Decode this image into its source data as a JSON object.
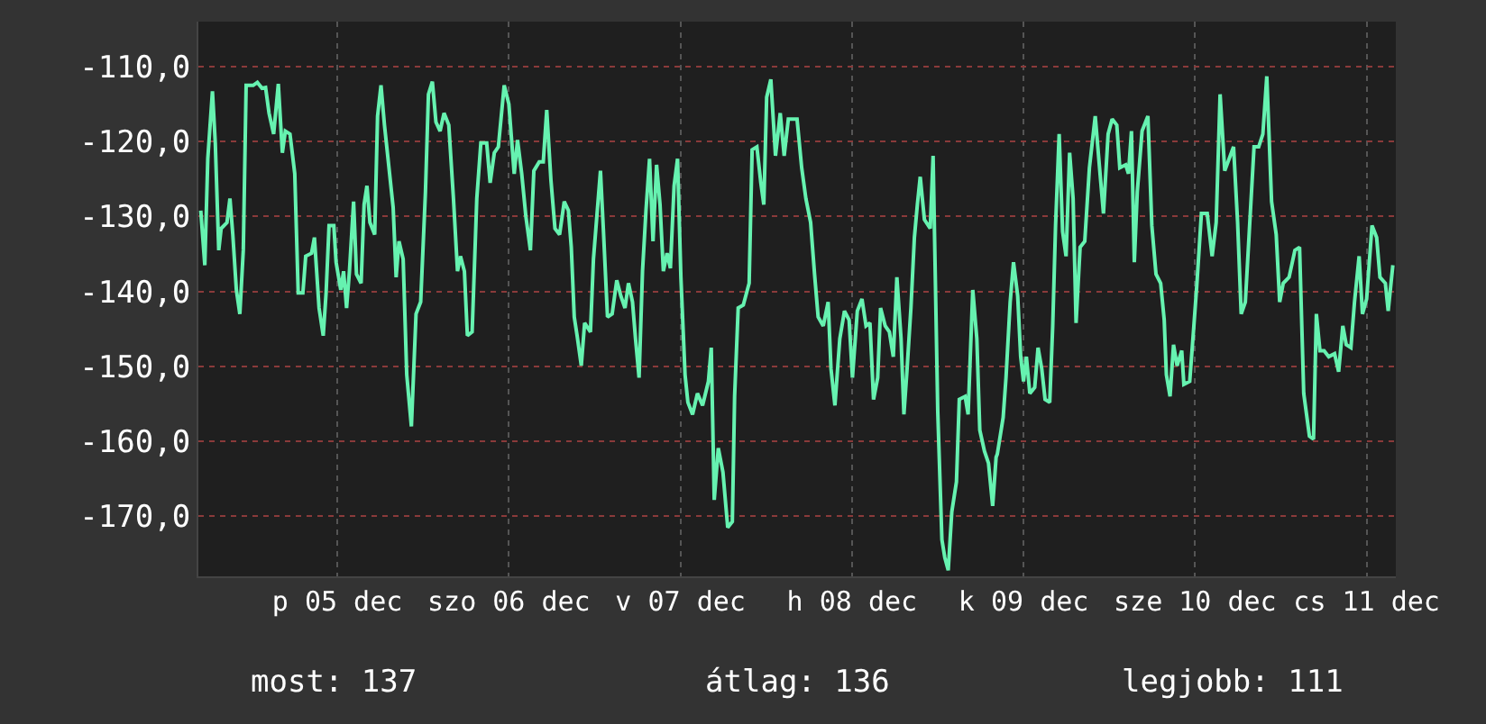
{
  "chart_data": {
    "type": "line",
    "x": [
      "--12-04T16:54",
      "--12-04T17:28",
      "--12-04T17:53",
      "--12-04T18:32",
      "--12-04T18:56",
      "--12-04T19:25",
      "--12-04T19:45",
      "--12-04T20:34",
      "--12-04T20:59",
      "--12-04T21:23",
      "--12-04T21:53",
      "--12-04T22:22",
      "--12-04T22:51",
      "--12-04T23:15",
      "--12-05T00:14",
      "--12-05T00:49",
      "--12-05T01:28",
      "--12-05T01:58",
      "--12-05T02:27",
      "--12-05T03:06",
      "--12-05T03:45",
      "--12-05T04:19",
      "--12-05T04:44",
      "--12-05T05:23",
      "--12-05T06:03",
      "--12-05T06:32",
      "--12-05T07:11",
      "--12-05T07:35",
      "--12-05T08:24",
      "--12-05T08:48",
      "--12-05T09:27",
      "--12-05T10:02",
      "--12-05T10:26",
      "--12-05T10:51",
      "--12-05T11:31",
      "--12-05T11:50",
      "--12-05T12:29",
      "--12-05T12:53",
      "--12-05T13:18",
      "--12-05T13:42",
      "--12-05T14:17",
      "--12-05T14:41",
      "--12-05T15:20",
      "--12-05T15:45",
      "--12-05T16:09",
      "--12-05T16:34",
      "--12-05T17:14",
      "--12-05T17:38",
      "--12-05T18:07",
      "--12-05T18:36",
      "--12-05T19:49",
      "--12-05T20:14",
      "--12-05T20:38",
      "--12-05T21:13",
      "--12-05T21:43",
      "--12-05T22:22",
      "--12-05T23:01",
      "--12-05T23:40",
      "--12-06T00:20",
      "--12-06T00:45",
      "--12-06T01:18",
      "--12-06T01:48",
      "--12-06T02:23",
      "--12-06T02:56",
      "--12-06T03:36",
      "--12-06T04:15",
      "--12-06T04:49",
      "--12-06T05:14",
      "--12-06T05:47",
      "--12-06T06:12",
      "--12-06T06:52",
      "--12-06T07:31",
      "--12-06T08:05",
      "--12-06T08:54",
      "--12-06T09:23",
      "--12-06T09:58",
      "--12-06T10:32",
      "--12-06T11:21",
      "--12-06T12:00",
      "--12-06T12:45",
      "--12-06T13:13",
      "--12-06T13:48",
      "--12-06T14:23",
      "--12-06T15:01",
      "--12-06T15:30",
      "--12-06T16:15",
      "--12-06T16:49",
      "--12-06T17:18",
      "--12-06T17:53",
      "--12-06T18:27",
      "--12-06T19:06",
      "--12-06T19:45",
      "--12-06T20:20",
      "--12-06T20:44",
      "--12-06T21:09",
      "--12-06T21:33",
      "--12-06T22:08",
      "--12-06T22:36",
      "--12-06T23:25",
      "--12-06T23:50",
      "--12-07T00:49",
      "--12-07T01:13",
      "--12-07T01:48",
      "--12-07T02:27",
      "--12-07T03:06",
      "--12-07T03:40",
      "--12-07T04:15",
      "--12-07T04:44",
      "--12-07T05:18",
      "--12-07T05:43",
      "--12-07T06:13",
      "--12-07T06:42",
      "--12-07T07:11",
      "--12-07T07:41",
      "--12-07T08:10",
      "--12-07T08:40",
      "--12-07T09:09",
      "--12-07T09:37",
      "--12-07T10:08",
      "--12-07T10:36",
      "--12-07T11:07",
      "--12-07T11:36",
      "--12-07T12:04",
      "--12-07T12:39",
      "--12-07T13:03",
      "--12-07T13:42",
      "--12-07T14:23",
      "--12-07T15:06",
      "--12-07T15:55",
      "--12-07T16:19",
      "--12-07T16:44",
      "--12-07T17:18",
      "--12-07T17:57",
      "--12-07T18:37",
      "--12-07T19:16",
      "--12-07T19:35",
      "--12-07T20:05",
      "--12-07T20:48",
      "--12-07T21:37",
      "--12-07T22:02",
      "--12-07T22:42",
      "--12-07T23:15",
      "--12-07T23:40",
      "--12-08T00:04",
      "--12-08T00:39",
      "--12-08T01:18",
      "--12-08T01:58",
      "--12-08T02:31",
      "--12-08T03:06",
      "--12-08T04:19",
      "--12-08T04:58",
      "--12-08T05:33",
      "--12-08T06:13",
      "--12-08T06:46",
      "--12-08T07:16",
      "--12-08T07:59",
      "--12-08T08:40",
      "--12-08T09:04",
      "--12-08T09:37",
      "--12-08T10:18",
      "--12-08T10:57",
      "--12-08T11:36",
      "--12-08T12:04",
      "--12-08T12:45",
      "--12-08T13:24",
      "--12-08T13:58",
      "--12-08T14:31",
      "--12-08T15:01",
      "--12-08T15:36",
      "--12-08T16:00",
      "--12-08T16:39",
      "--12-08T17:14",
      "--12-08T17:47",
      "--12-08T18:17",
      "--12-08T18:52",
      "--12-08T19:16",
      "--12-08T19:41",
      "--12-08T20:15",
      "--12-08T20:44",
      "--12-08T21:09",
      "--12-08T21:33",
      "--12-08T22:08",
      "--12-08T22:57",
      "--12-08T23:21",
      "--12-09T00:00",
      "--12-09T00:35",
      "--12-09T00:59",
      "--12-09T01:28",
      "--12-09T01:58",
      "--12-09T02:37",
      "--12-09T03:01",
      "--12-09T03:50",
      "--12-09T04:15",
      "--12-09T04:54",
      "--12-09T05:28",
      "--12-09T05:53",
      "--12-09T06:32",
      "--12-09T07:06",
      "--12-09T07:41",
      "--12-09T08:10",
      "--12-09T08:20",
      "--12-09T09:09",
      "--12-09T09:33",
      "--12-09T10:08",
      "--12-09T10:36",
      "--12-09T11:11",
      "--12-09T11:36",
      "--12-09T12:00",
      "--12-09T12:24",
      "--12-09T12:53",
      "--12-09T13:34",
      "--12-09T14:02",
      "--12-09T14:33",
      "--12-09T15:01",
      "--12-09T15:40",
      "--12-09T16:05",
      "--12-09T16:29",
      "--12-09T16:59",
      "--12-09T17:28",
      "--12-09T17:57",
      "--12-09T18:27",
      "--12-09T18:56",
      "--12-09T19:21",
      "--12-09T19:55",
      "--12-09T20:34",
      "--12-09T21:13",
      "--12-09T22:02",
      "--12-09T22:36",
      "--12-09T23:11",
      "--12-09T23:50",
      "--12-10T00:24",
      "--12-10T01:03",
      "--12-10T01:28",
      "--12-10T02:17",
      "--12-10T02:41",
      "--12-10T03:06",
      "--12-10T03:30",
      "--12-10T03:55",
      "--12-10T04:35",
      "--12-10T05:24",
      "--12-10T05:57",
      "--12-10T06:32",
      "--12-10T07:11",
      "--12-10T07:41",
      "--12-10T07:59",
      "--12-10T08:30",
      "--12-10T08:59",
      "--12-10T09:29",
      "--12-10T10:08",
      "--12-10T10:26",
      "--12-10T11:15",
      "--12-10T11:46",
      "--12-10T12:14",
      "--12-10T12:53",
      "--12-10T13:42",
      "--12-10T14:23",
      "--12-10T14:57",
      "--12-10T15:30",
      "--12-10T16:09",
      "--12-10T17:23",
      "--12-10T17:57",
      "--12-10T18:27",
      "--12-10T19:02",
      "--12-10T19:35",
      "--12-10T20:15",
      "--12-10T20:54",
      "--12-10T21:29",
      "--12-10T22:02",
      "--12-10T22:42",
      "--12-10T23:21",
      "--12-10T23:50",
      "--12-11T00:20",
      "--12-11T01:09",
      "--12-11T01:58",
      "--12-11T02:37",
      "--12-11T03:12",
      "--12-11T04:00",
      "--12-11T04:34",
      "--12-11T04:58",
      "--12-11T05:28",
      "--12-11T06:03",
      "--12-11T06:42",
      "--12-11T07:31",
      "--12-11T08:05",
      "--12-11T08:40",
      "--12-11T09:09",
      "--12-11T09:48",
      "--12-11T10:18",
      "--12-11T10:57",
      "--12-11T11:25",
      "--12-11T12:00",
      "--12-11T12:45",
      "--12-11T13:24",
      "--12-11T13:52",
      "--12-11T14:37",
      "--12-11T15:01",
      "--12-11T15:40"
    ],
    "series": [
      {
        "color": "#66f2b0",
        "values": [
          -129.2,
          -136.5,
          -122.3,
          -113.3,
          -120.2,
          -134.5,
          -131.6,
          -130.8,
          -127.6,
          -132.4,
          -139.8,
          -143.0,
          -134.5,
          -112.5,
          -112.5,
          -112.1,
          -112.9,
          -112.8,
          -116.2,
          -119.0,
          -112.3,
          -121.5,
          -118.6,
          -119.0,
          -124.3,
          -140.2,
          -140.2,
          -135.3,
          -134.9,
          -132.8,
          -142.2,
          -145.9,
          -140.2,
          -131.2,
          -131.2,
          -136.1,
          -139.8,
          -137.3,
          -142.2,
          -137.3,
          -128.0,
          -137.7,
          -138.9,
          -128.4,
          -125.9,
          -130.8,
          -132.4,
          -116.6,
          -112.5,
          -117.8,
          -128.8,
          -138.1,
          -133.3,
          -135.7,
          -151.1,
          -158.0,
          -143.0,
          -141.4,
          -126.7,
          -113.7,
          -112.0,
          -117.4,
          -118.6,
          -116.2,
          -117.8,
          -127.6,
          -137.3,
          -135.3,
          -137.3,
          -145.9,
          -145.4,
          -127.6,
          -120.2,
          -120.2,
          -125.5,
          -121.5,
          -120.7,
          -112.5,
          -115.0,
          -124.3,
          -119.8,
          -124.3,
          -130.0,
          -134.5,
          -123.9,
          -122.7,
          -122.7,
          -115.8,
          -125.1,
          -131.6,
          -132.4,
          -128.0,
          -129.2,
          -134.1,
          -143.4,
          -145.9,
          -149.9,
          -144.2,
          -145.4,
          -135.7,
          -123.9,
          -131.6,
          -143.4,
          -143.0,
          -138.5,
          -140.6,
          -142.2,
          -138.9,
          -141.4,
          -146.3,
          -151.5,
          -137.3,
          -129.2,
          -122.3,
          -133.3,
          -123.1,
          -128.4,
          -137.3,
          -134.9,
          -136.9,
          -125.9,
          -122.3,
          -138.1,
          -151.1,
          -154.8,
          -156.4,
          -153.6,
          -155.2,
          -152.0,
          -147.5,
          -167.8,
          -160.9,
          -164.1,
          -171.5,
          -170.7,
          -154.0,
          -142.2,
          -141.8,
          -138.9,
          -121.1,
          -120.7,
          -125.5,
          -128.4,
          -114.1,
          -111.7,
          -121.9,
          -116.2,
          -121.9,
          -117.0,
          -117.0,
          -123.5,
          -127.6,
          -130.8,
          -137.7,
          -143.4,
          -144.6,
          -141.4,
          -150.3,
          -155.2,
          -146.3,
          -142.6,
          -143.8,
          -151.5,
          -142.6,
          -141.0,
          -144.6,
          -144.2,
          -154.4,
          -151.5,
          -142.2,
          -144.6,
          -145.4,
          -148.7,
          -138.1,
          -146.3,
          -156.4,
          -150.7,
          -142.2,
          -132.8,
          -128.4,
          -124.7,
          -130.4,
          -131.6,
          -121.9,
          -156.0,
          -173.1,
          -175.5,
          -177.2,
          -169.4,
          -165.4,
          -154.4,
          -154.0,
          -156.4,
          -139.8,
          -146.3,
          -158.5,
          -161.3,
          -162.9,
          -168.6,
          -162.1,
          -161.7,
          -156.8,
          -151.5,
          -141.4,
          -136.1,
          -140.6,
          -148.7,
          -152.0,
          -148.7,
          -153.6,
          -152.8,
          -147.5,
          -150.3,
          -154.4,
          -154.8,
          -144.6,
          -131.2,
          -119.0,
          -132.0,
          -135.3,
          -121.5,
          -127.6,
          -144.2,
          -134.1,
          -133.3,
          -123.5,
          -116.6,
          -123.1,
          -129.6,
          -119.0,
          -117.0,
          -117.8,
          -123.5,
          -123.1,
          -124.3,
          -118.6,
          -136.1,
          -126.7,
          -118.6,
          -116.6,
          -131.2,
          -137.7,
          -138.9,
          -143.8,
          -151.1,
          -154.0,
          -147.1,
          -149.9,
          -147.9,
          -152.4,
          -152.0,
          -145.4,
          -139.3,
          -129.6,
          -129.6,
          -135.3,
          -130.8,
          -113.7,
          -123.9,
          -120.7,
          -130.8,
          -143.0,
          -141.4,
          -132.0,
          -120.7,
          -120.7,
          -119.0,
          -111.3,
          -128.0,
          -132.4,
          -141.4,
          -138.9,
          -138.1,
          -134.5,
          -134.1,
          -153.6,
          -159.3,
          -159.7,
          -143.0,
          -147.9,
          -147.9,
          -148.7,
          -148.3,
          -150.7,
          -144.6,
          -147.1,
          -147.5,
          -141.4,
          -135.3,
          -143.0,
          -141.0,
          -131.2,
          -132.8,
          -138.1,
          -138.9,
          -142.6,
          -136.5
        ]
      }
    ],
    "xlim": [
      "--12-04T16:34",
      "--12-11T16:05"
    ],
    "xticks": [
      {
        "value": "--12-05T12:00",
        "label": "p 05 dec"
      },
      {
        "value": "--12-06T12:00",
        "label": "szo 06 dec"
      },
      {
        "value": "--12-07T12:00",
        "label": "v 07 dec"
      },
      {
        "value": "--12-08T12:00",
        "label": "h 08 dec"
      },
      {
        "value": "--12-09T12:00",
        "label": "k 09 dec"
      },
      {
        "value": "--12-10T12:00",
        "label": "sze 10 dec"
      },
      {
        "value": "--12-11T12:00",
        "label": "cs 11 dec"
      }
    ],
    "ylim": [
      -178,
      -104
    ],
    "yticks": [
      {
        "value": -170,
        "label": "-170,0"
      },
      {
        "value": -160,
        "label": "-160,0"
      },
      {
        "value": -150,
        "label": "-150,0"
      },
      {
        "value": -140,
        "label": "-140,0"
      },
      {
        "value": -130,
        "label": "-130,0"
      },
      {
        "value": -120,
        "label": "-120,0"
      },
      {
        "value": -110,
        "label": "-110,0"
      }
    ],
    "grid": true,
    "line_style": "solid",
    "annotations": [
      "most: 137",
      "átlag: 136",
      "legjobb: 111"
    ]
  }
}
